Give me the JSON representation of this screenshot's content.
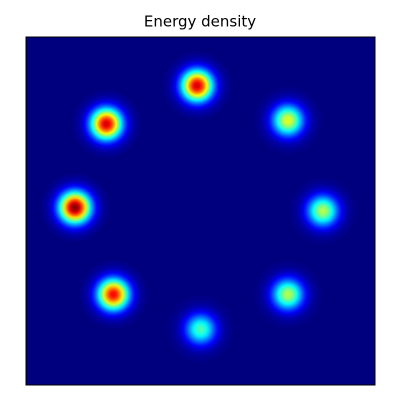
{
  "chart_data": {
    "type": "heatmap",
    "title": "Energy density",
    "colormap": "jet",
    "blobs": [
      {
        "x": 0.49,
        "y": 0.14,
        "value": 0.92
      },
      {
        "x": 0.75,
        "y": 0.24,
        "value": 0.6
      },
      {
        "x": 0.85,
        "y": 0.5,
        "value": 0.55
      },
      {
        "x": 0.75,
        "y": 0.74,
        "value": 0.55
      },
      {
        "x": 0.5,
        "y": 0.84,
        "value": 0.45
      },
      {
        "x": 0.25,
        "y": 0.74,
        "value": 0.88
      },
      {
        "x": 0.14,
        "y": 0.49,
        "value": 1.0
      },
      {
        "x": 0.23,
        "y": 0.25,
        "value": 0.92
      }
    ]
  }
}
